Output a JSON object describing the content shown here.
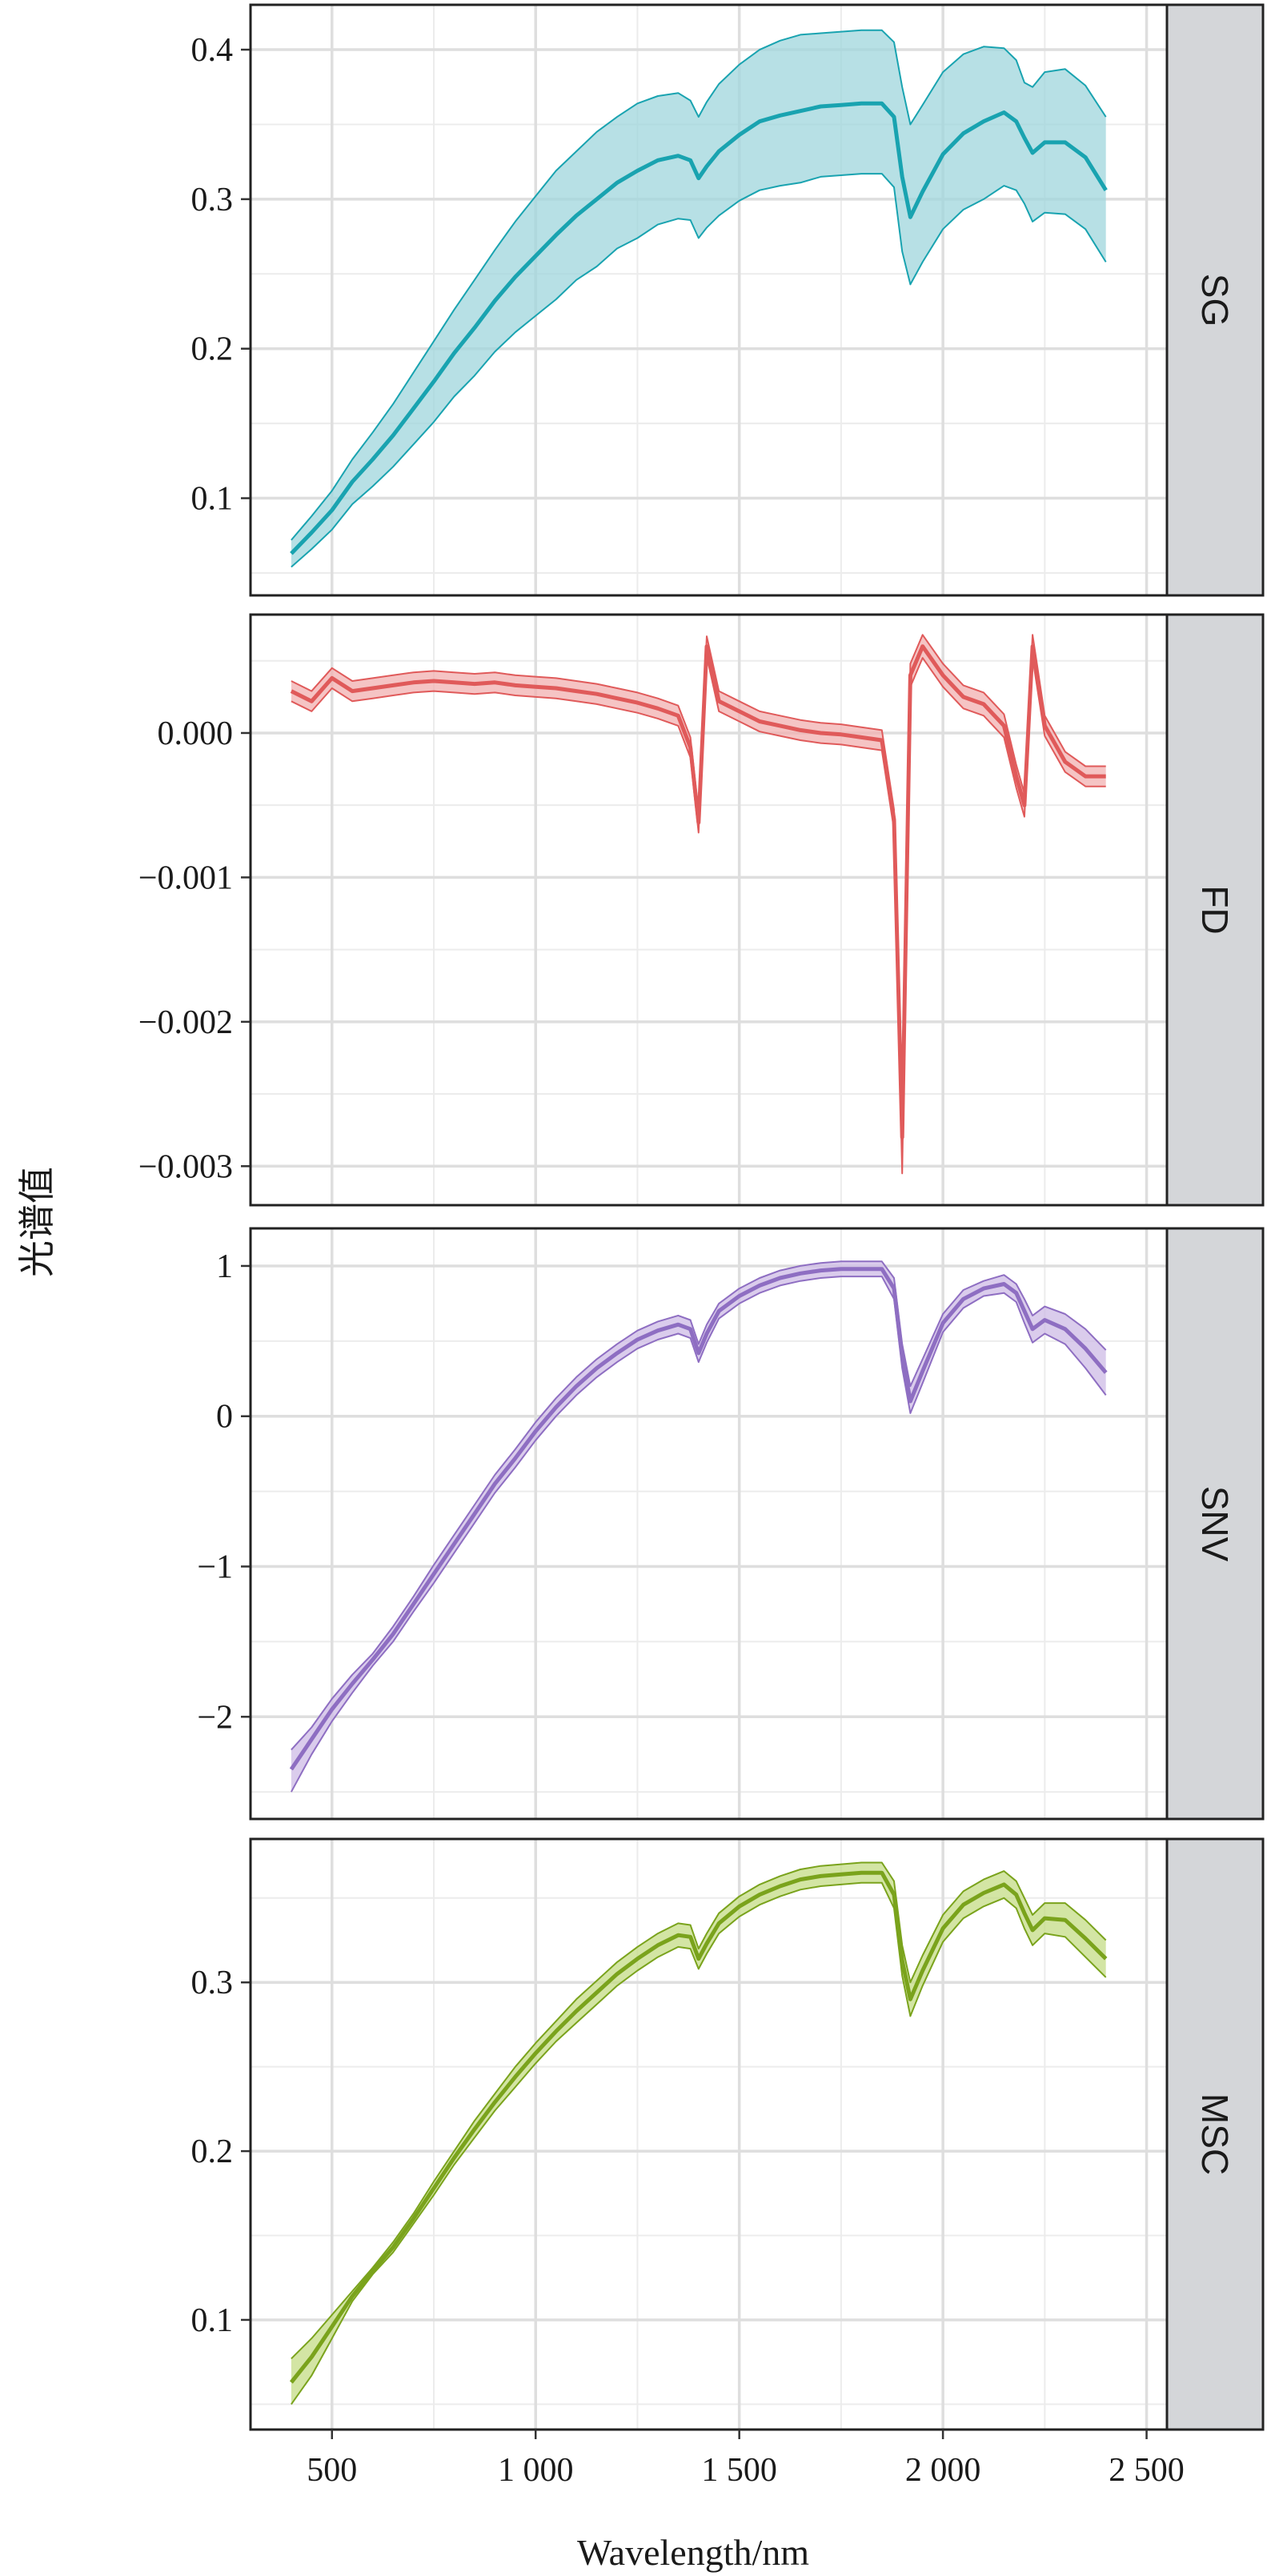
{
  "chart_data": {
    "type": "area",
    "xlabel": "Wavelength/nm",
    "ylabel": "光谱值",
    "x_ticks": [
      500,
      1000,
      1500,
      2000,
      2500
    ],
    "x_tick_labels": [
      "500",
      "1 000",
      "1 500",
      "2 000",
      "2 500"
    ],
    "xlim": [
      300,
      2550
    ],
    "grid": true,
    "x": [
      400,
      450,
      500,
      550,
      600,
      650,
      700,
      750,
      800,
      850,
      900,
      950,
      1000,
      1050,
      1100,
      1150,
      1200,
      1250,
      1300,
      1350,
      1380,
      1400,
      1420,
      1450,
      1500,
      1550,
      1600,
      1650,
      1700,
      1750,
      1800,
      1850,
      1880,
      1900,
      1920,
      1950,
      2000,
      2050,
      2100,
      2150,
      2180,
      2200,
      2220,
      2250,
      2300,
      2350,
      2400
    ],
    "panels": [
      {
        "label": "SG",
        "color": "#19a3b0",
        "fill": "#9fd6dc",
        "ylim": [
          0.035,
          0.43
        ],
        "y_ticks": [
          0.1,
          0.2,
          0.3,
          0.4
        ],
        "y_tick_labels": [
          "0.1",
          "0.2",
          "0.3",
          "0.4"
        ],
        "mean": [
          0.063,
          0.077,
          0.092,
          0.111,
          0.126,
          0.142,
          0.16,
          0.178,
          0.197,
          0.214,
          0.232,
          0.248,
          0.262,
          0.276,
          0.289,
          0.3,
          0.311,
          0.319,
          0.326,
          0.329,
          0.326,
          0.314,
          0.322,
          0.332,
          0.343,
          0.352,
          0.356,
          0.359,
          0.362,
          0.363,
          0.364,
          0.364,
          0.355,
          0.315,
          0.288,
          0.305,
          0.33,
          0.344,
          0.352,
          0.358,
          0.352,
          0.341,
          0.331,
          0.338,
          0.338,
          0.328,
          0.306
        ],
        "upper": [
          0.072,
          0.088,
          0.105,
          0.126,
          0.144,
          0.163,
          0.184,
          0.205,
          0.226,
          0.246,
          0.266,
          0.285,
          0.302,
          0.319,
          0.332,
          0.345,
          0.355,
          0.364,
          0.369,
          0.371,
          0.366,
          0.355,
          0.365,
          0.377,
          0.39,
          0.4,
          0.406,
          0.41,
          0.411,
          0.412,
          0.413,
          0.413,
          0.405,
          0.375,
          0.35,
          0.363,
          0.385,
          0.397,
          0.402,
          0.401,
          0.393,
          0.378,
          0.375,
          0.385,
          0.387,
          0.376,
          0.355
        ],
        "lower": [
          0.054,
          0.066,
          0.079,
          0.096,
          0.108,
          0.121,
          0.136,
          0.151,
          0.168,
          0.182,
          0.198,
          0.211,
          0.222,
          0.233,
          0.246,
          0.255,
          0.267,
          0.274,
          0.283,
          0.287,
          0.286,
          0.274,
          0.281,
          0.289,
          0.299,
          0.306,
          0.309,
          0.311,
          0.315,
          0.316,
          0.317,
          0.317,
          0.308,
          0.265,
          0.243,
          0.258,
          0.28,
          0.293,
          0.3,
          0.309,
          0.306,
          0.297,
          0.285,
          0.291,
          0.29,
          0.28,
          0.258
        ]
      },
      {
        "label": "FD",
        "color": "#e05a5a",
        "fill": "#f2b0b0",
        "ylim": [
          -0.00327,
          0.00082
        ],
        "y_ticks": [
          0.0,
          -0.001,
          -0.002,
          -0.003
        ],
        "y_tick_labels": [
          "0.000",
          "−0.001",
          "−0.002",
          "−0.003"
        ],
        "mean": [
          0.00029,
          0.00022,
          0.00038,
          0.00029,
          0.00031,
          0.00033,
          0.00035,
          0.00036,
          0.00035,
          0.00034,
          0.00035,
          0.00033,
          0.00032,
          0.00031,
          0.00029,
          0.00027,
          0.00024,
          0.00021,
          0.00017,
          0.00012,
          -0.0001,
          -0.00062,
          0.0006,
          0.00022,
          0.00015,
          8e-05,
          5e-05,
          2e-05,
          0.0,
          -1e-05,
          -3e-05,
          -5e-05,
          -0.0006,
          -0.0028,
          0.0004,
          0.0006,
          0.0004,
          0.00025,
          0.0002,
          5e-05,
          -0.0003,
          -0.0005,
          0.0006,
          5e-05,
          -0.0002,
          -0.0003,
          -0.0003
        ],
        "upper": [
          0.00036,
          0.00029,
          0.00045,
          0.00036,
          0.00038,
          0.0004,
          0.00042,
          0.00043,
          0.00042,
          0.00041,
          0.00042,
          0.0004,
          0.00039,
          0.00038,
          0.00036,
          0.00034,
          0.00031,
          0.00028,
          0.00024,
          0.00019,
          -3e-05,
          -0.00055,
          0.00067,
          0.00029,
          0.00022,
          0.00015,
          0.00012,
          9e-05,
          7e-05,
          6e-05,
          4e-05,
          2e-05,
          -0.00053,
          -0.00265,
          0.00048,
          0.00068,
          0.00048,
          0.00033,
          0.00028,
          0.00013,
          -0.00022,
          -0.00042,
          0.00068,
          0.00012,
          -0.00013,
          -0.00023,
          -0.00023
        ],
        "lower": [
          0.00022,
          0.00015,
          0.00031,
          0.00022,
          0.00024,
          0.00026,
          0.00028,
          0.00029,
          0.00028,
          0.00027,
          0.00028,
          0.00026,
          0.00025,
          0.00024,
          0.00022,
          0.0002,
          0.00017,
          0.00014,
          0.0001,
          5e-05,
          -0.00017,
          -0.00069,
          0.00053,
          0.00015,
          8e-05,
          1e-05,
          -2e-05,
          -5e-05,
          -7e-05,
          -8e-05,
          -0.0001,
          -0.00012,
          -0.00067,
          -0.00305,
          0.00032,
          0.00052,
          0.00032,
          0.00017,
          0.00012,
          -3e-05,
          -0.00038,
          -0.00058,
          0.00052,
          -2e-05,
          -0.00027,
          -0.00037,
          -0.00037
        ]
      },
      {
        "label": "SNV",
        "color": "#8e6ec2",
        "fill": "#cdbbe6",
        "ylim": [
          -2.68,
          1.25
        ],
        "y_ticks": [
          1,
          0,
          -1,
          -2
        ],
        "y_tick_labels": [
          "1",
          "0",
          "−1",
          "−2"
        ],
        "mean": [
          -2.35,
          -2.15,
          -1.95,
          -1.78,
          -1.62,
          -1.45,
          -1.25,
          -1.05,
          -0.85,
          -0.65,
          -0.45,
          -0.28,
          -0.1,
          0.06,
          0.2,
          0.32,
          0.42,
          0.51,
          0.57,
          0.61,
          0.58,
          0.42,
          0.55,
          0.7,
          0.8,
          0.87,
          0.92,
          0.95,
          0.97,
          0.98,
          0.98,
          0.98,
          0.85,
          0.4,
          0.1,
          0.3,
          0.62,
          0.78,
          0.85,
          0.88,
          0.82,
          0.7,
          0.58,
          0.64,
          0.58,
          0.45,
          0.29
        ],
        "upper": [
          -2.22,
          -2.07,
          -1.88,
          -1.72,
          -1.58,
          -1.4,
          -1.2,
          -0.99,
          -0.79,
          -0.59,
          -0.39,
          -0.22,
          -0.04,
          0.12,
          0.26,
          0.38,
          0.48,
          0.57,
          0.63,
          0.67,
          0.64,
          0.48,
          0.61,
          0.75,
          0.85,
          0.92,
          0.97,
          1.0,
          1.02,
          1.03,
          1.03,
          1.03,
          0.92,
          0.48,
          0.2,
          0.38,
          0.68,
          0.84,
          0.9,
          0.94,
          0.88,
          0.78,
          0.67,
          0.73,
          0.68,
          0.58,
          0.44
        ],
        "lower": [
          -2.5,
          -2.25,
          -2.03,
          -1.84,
          -1.66,
          -1.5,
          -1.3,
          -1.11,
          -0.91,
          -0.71,
          -0.51,
          -0.34,
          -0.16,
          0.0,
          0.14,
          0.26,
          0.36,
          0.45,
          0.51,
          0.55,
          0.52,
          0.36,
          0.49,
          0.65,
          0.75,
          0.82,
          0.87,
          0.9,
          0.92,
          0.93,
          0.93,
          0.93,
          0.78,
          0.32,
          0.02,
          0.22,
          0.56,
          0.72,
          0.8,
          0.82,
          0.76,
          0.62,
          0.49,
          0.55,
          0.48,
          0.32,
          0.14
        ]
      },
      {
        "label": "MSC",
        "color": "#7aa31c",
        "fill": "#c4dc86",
        "ylim": [
          0.035,
          0.385
        ],
        "y_ticks": [
          0.1,
          0.2,
          0.3
        ],
        "y_tick_labels": [
          "0.1",
          "0.2",
          "0.3"
        ],
        "mean": [
          0.063,
          0.078,
          0.096,
          0.114,
          0.129,
          0.143,
          0.16,
          0.178,
          0.196,
          0.213,
          0.229,
          0.244,
          0.258,
          0.271,
          0.283,
          0.294,
          0.305,
          0.314,
          0.322,
          0.328,
          0.327,
          0.314,
          0.323,
          0.335,
          0.345,
          0.352,
          0.357,
          0.361,
          0.363,
          0.364,
          0.365,
          0.365,
          0.352,
          0.313,
          0.29,
          0.307,
          0.332,
          0.346,
          0.353,
          0.358,
          0.352,
          0.341,
          0.331,
          0.338,
          0.337,
          0.326,
          0.314
        ],
        "upper": [
          0.077,
          0.089,
          0.103,
          0.117,
          0.131,
          0.146,
          0.163,
          0.182,
          0.2,
          0.218,
          0.234,
          0.25,
          0.264,
          0.277,
          0.29,
          0.301,
          0.312,
          0.321,
          0.329,
          0.335,
          0.334,
          0.32,
          0.329,
          0.341,
          0.351,
          0.358,
          0.363,
          0.367,
          0.369,
          0.37,
          0.371,
          0.371,
          0.36,
          0.322,
          0.3,
          0.316,
          0.34,
          0.354,
          0.361,
          0.366,
          0.36,
          0.35,
          0.34,
          0.347,
          0.347,
          0.337,
          0.325
        ],
        "lower": [
          0.05,
          0.067,
          0.089,
          0.111,
          0.127,
          0.14,
          0.157,
          0.174,
          0.192,
          0.208,
          0.224,
          0.238,
          0.252,
          0.265,
          0.276,
          0.287,
          0.298,
          0.307,
          0.315,
          0.321,
          0.32,
          0.308,
          0.317,
          0.329,
          0.339,
          0.346,
          0.351,
          0.355,
          0.357,
          0.358,
          0.359,
          0.359,
          0.344,
          0.304,
          0.28,
          0.298,
          0.324,
          0.338,
          0.345,
          0.35,
          0.344,
          0.332,
          0.322,
          0.329,
          0.327,
          0.315,
          0.303
        ]
      }
    ]
  }
}
